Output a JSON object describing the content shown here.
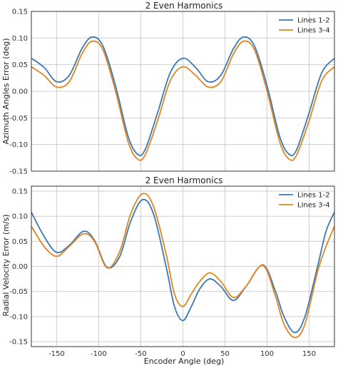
{
  "chart_data": [
    {
      "type": "line",
      "title": "2 Even Harmonics",
      "xlabel": "",
      "ylabel": "Azimuth Angles Error (deg)",
      "xlim": [
        -180,
        180
      ],
      "ylim": [
        -0.15,
        0.15
      ],
      "xticks": [
        -150,
        -100,
        -50,
        0,
        50,
        100,
        150
      ],
      "yticks": [
        -0.15,
        -0.1,
        -0.05,
        0.0,
        0.05,
        0.1,
        0.15
      ],
      "ytick_labels": [
        "-0.15",
        "-0.10",
        "-0.05",
        "0.00",
        "0.05",
        "0.10",
        "0.15"
      ],
      "show_xtick_labels": false,
      "grid": true,
      "legend_position": "top-right",
      "series": [
        {
          "name": "Lines 1-2",
          "color": "#3a78b5",
          "x": [
            -180,
            -165,
            -150,
            -135,
            -120,
            -108,
            -95,
            -80,
            -65,
            -54,
            -45,
            -30,
            -15,
            0,
            15,
            30,
            45,
            60,
            72,
            85,
            100,
            115,
            126,
            135,
            150,
            165,
            180
          ],
          "y": [
            0.062,
            0.045,
            0.018,
            0.03,
            0.08,
            0.102,
            0.085,
            0.01,
            -0.085,
            -0.118,
            -0.11,
            -0.04,
            0.035,
            0.062,
            0.045,
            0.018,
            0.03,
            0.08,
            0.102,
            0.085,
            0.01,
            -0.085,
            -0.118,
            -0.11,
            -0.04,
            0.035,
            0.062
          ]
        },
        {
          "name": "Lines 3-4",
          "color": "#e0851f",
          "x": [
            -180,
            -165,
            -150,
            -135,
            -120,
            -108,
            -95,
            -80,
            -65,
            -54,
            -45,
            -30,
            -15,
            0,
            15,
            30,
            45,
            60,
            72,
            85,
            100,
            115,
            126,
            135,
            150,
            165,
            180
          ],
          "y": [
            0.046,
            0.03,
            0.008,
            0.018,
            0.07,
            0.094,
            0.078,
            0.0,
            -0.095,
            -0.127,
            -0.12,
            -0.055,
            0.02,
            0.046,
            0.03,
            0.008,
            0.018,
            0.07,
            0.094,
            0.078,
            0.0,
            -0.095,
            -0.127,
            -0.12,
            -0.055,
            0.02,
            0.046
          ]
        }
      ]
    },
    {
      "type": "line",
      "title": "2 Even Harmonics",
      "xlabel": "Encoder Angle (deg)",
      "ylabel": "Radial Velocity Error (m/s)",
      "xlim": [
        -180,
        180
      ],
      "ylim": [
        -0.16,
        0.16
      ],
      "xticks": [
        -150,
        -100,
        -50,
        0,
        50,
        100,
        150
      ],
      "yticks": [
        -0.15,
        -0.1,
        -0.05,
        0.0,
        0.05,
        0.1,
        0.15
      ],
      "ytick_labels": [
        "-0.15",
        "-0.10",
        "-0.05",
        "0.00",
        "0.05",
        "0.10",
        "0.15"
      ],
      "show_xtick_labels": true,
      "grid": true,
      "legend_position": "top-right",
      "series": [
        {
          "name": "Lines 1-2",
          "color": "#3a78b5",
          "x": [
            -180,
            -165,
            -150,
            -135,
            -118,
            -105,
            -90,
            -75,
            -62,
            -48,
            -35,
            -20,
            -10,
            0,
            10,
            20,
            32,
            45,
            60,
            75,
            95,
            110,
            120,
            133,
            145,
            160,
            170,
            180
          ],
          "y": [
            0.108,
            0.06,
            0.028,
            0.042,
            0.07,
            0.052,
            -0.002,
            0.02,
            0.09,
            0.133,
            0.105,
            0.0,
            -0.08,
            -0.108,
            -0.08,
            -0.045,
            -0.025,
            -0.04,
            -0.068,
            -0.04,
            0.003,
            -0.05,
            -0.1,
            -0.132,
            -0.1,
            0.0,
            0.07,
            0.108
          ]
        },
        {
          "name": "Lines 3-4",
          "color": "#e0851f",
          "x": [
            -180,
            -165,
            -150,
            -135,
            -118,
            -105,
            -90,
            -75,
            -62,
            -48,
            -35,
            -20,
            -10,
            0,
            10,
            20,
            32,
            45,
            60,
            75,
            95,
            110,
            120,
            133,
            145,
            160,
            170,
            180
          ],
          "y": [
            0.08,
            0.04,
            0.02,
            0.04,
            0.065,
            0.05,
            -0.003,
            0.03,
            0.105,
            0.145,
            0.12,
            0.025,
            -0.055,
            -0.08,
            -0.055,
            -0.03,
            -0.013,
            -0.03,
            -0.062,
            -0.04,
            0.002,
            -0.06,
            -0.115,
            -0.142,
            -0.115,
            -0.01,
            0.04,
            0.08
          ]
        }
      ]
    }
  ]
}
